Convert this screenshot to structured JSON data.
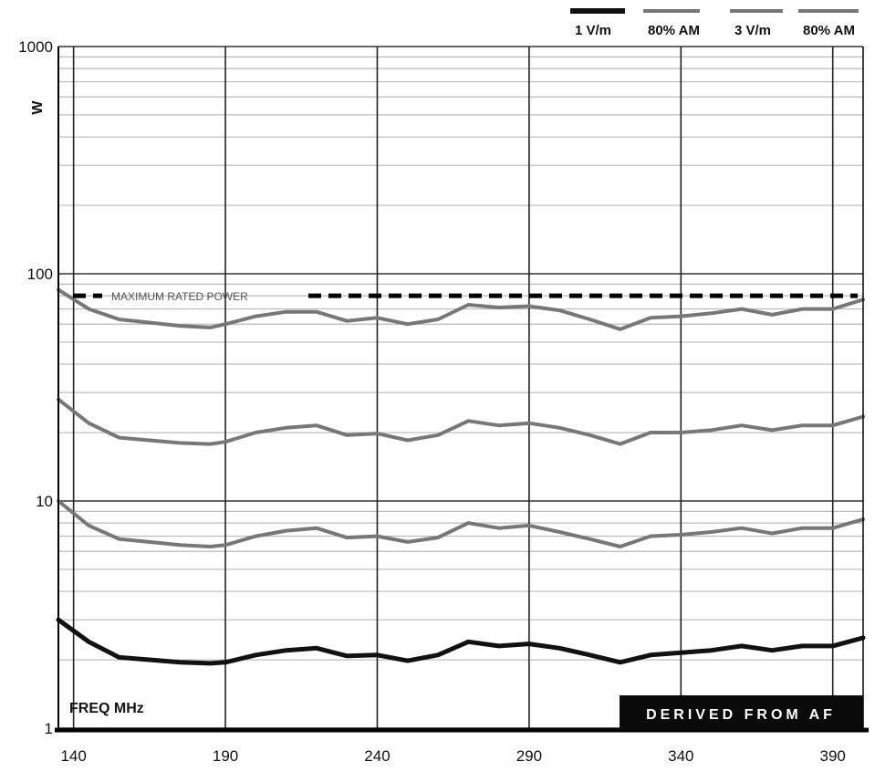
{
  "chart_data": {
    "type": "line",
    "xlabel": "FREQ  MHz",
    "ylabel": "W",
    "x_scale": "linear",
    "y_scale": "log",
    "xlim": [
      135,
      400
    ],
    "ylim": [
      1,
      1000
    ],
    "x_ticks": [
      140,
      190,
      240,
      290,
      340,
      390
    ],
    "x_tick_labels": [
      "140",
      "190",
      "240",
      "290",
      "340",
      "390"
    ],
    "y_ticks": [
      1,
      10,
      100,
      1000
    ],
    "y_tick_labels": [
      "1",
      "10",
      "100",
      "1000"
    ],
    "grid": true,
    "legend_position": "top-right",
    "legend": [
      {
        "label": "1 V/m",
        "color": "#111111",
        "width": 6
      },
      {
        "label": "80% AM",
        "color": "#777777",
        "width": 4
      },
      {
        "label": "3 V/m",
        "color": "#777777",
        "width": 4
      },
      {
        "label": "80% AM",
        "color": "#777777",
        "width": 4
      }
    ],
    "reference_line": {
      "label": "MAXIMUM RATED POWER",
      "value": 80,
      "color": "#000000"
    },
    "badge_text": "DERIVED FROM AF",
    "x": [
      135,
      145,
      155,
      165,
      175,
      185,
      190,
      200,
      210,
      220,
      230,
      240,
      250,
      260,
      270,
      280,
      290,
      300,
      310,
      320,
      330,
      340,
      350,
      360,
      370,
      380,
      390,
      400
    ],
    "series": [
      {
        "color": "#111111",
        "width": 5,
        "values": [
          3.0,
          2.4,
          2.05,
          2.0,
          1.95,
          1.93,
          1.95,
          2.1,
          2.2,
          2.25,
          2.08,
          2.1,
          1.98,
          2.1,
          2.4,
          2.3,
          2.35,
          2.25,
          2.1,
          1.95,
          2.1,
          2.15,
          2.2,
          2.3,
          2.2,
          2.3,
          2.3,
          2.5
        ]
      },
      {
        "color": "#777777",
        "width": 4,
        "values": [
          10.0,
          7.8,
          6.8,
          6.6,
          6.4,
          6.3,
          6.4,
          7.0,
          7.4,
          7.6,
          6.9,
          7.0,
          6.6,
          6.9,
          8.0,
          7.6,
          7.8,
          7.3,
          6.8,
          6.3,
          7.0,
          7.1,
          7.3,
          7.6,
          7.2,
          7.6,
          7.6,
          8.3
        ]
      },
      {
        "color": "#777777",
        "width": 4,
        "values": [
          28.0,
          22.0,
          19.0,
          18.5,
          18.0,
          17.8,
          18.2,
          20.0,
          21.0,
          21.5,
          19.5,
          19.8,
          18.5,
          19.5,
          22.5,
          21.5,
          22.0,
          21.0,
          19.5,
          17.8,
          20.0,
          20.0,
          20.5,
          21.5,
          20.5,
          21.5,
          21.5,
          23.5
        ]
      },
      {
        "color": "#777777",
        "width": 4,
        "values": [
          85.0,
          70.0,
          63.0,
          61.0,
          59.0,
          58.0,
          60.0,
          65.0,
          68.0,
          68.0,
          62.0,
          64.0,
          60.0,
          63.0,
          73.0,
          71.0,
          72.0,
          69.0,
          63.0,
          57.0,
          64.0,
          65.0,
          67.0,
          70.0,
          66.0,
          70.0,
          70.0,
          77.0
        ]
      }
    ]
  }
}
